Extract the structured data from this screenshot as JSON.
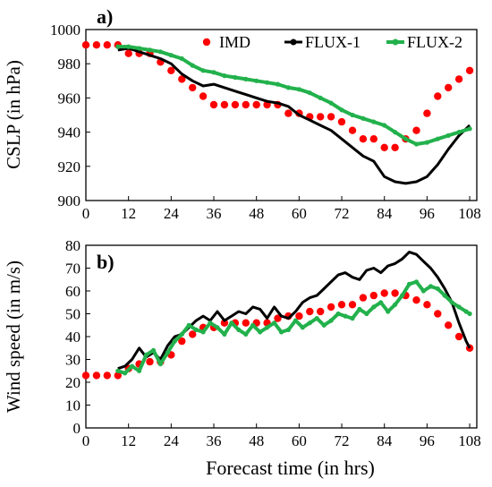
{
  "chart_data": [
    {
      "panel_label": "a)",
      "type": "line",
      "title": "",
      "xlabel": "",
      "ylabel": "CSLP (in hPa)",
      "xlim": [
        0,
        110
      ],
      "ylim": [
        900,
        1000
      ],
      "x_ticks": [
        0,
        12,
        24,
        36,
        48,
        60,
        72,
        84,
        96,
        108
      ],
      "y_ticks": [
        900,
        920,
        940,
        960,
        980,
        1000
      ],
      "grid": false,
      "legend": "top-right",
      "series": [
        {
          "name": "IMD",
          "style": "dots",
          "color": "#ff0000",
          "x": [
            0,
            3,
            6,
            9,
            12,
            15,
            18,
            21,
            24,
            27,
            30,
            33,
            36,
            39,
            42,
            45,
            48,
            51,
            54,
            57,
            60,
            63,
            66,
            69,
            72,
            75,
            78,
            81,
            84,
            87,
            90,
            93,
            96,
            99,
            102,
            105,
            108
          ],
          "y": [
            991,
            991,
            991,
            991,
            986,
            986,
            986,
            981,
            976,
            971,
            966,
            961,
            956,
            956,
            956,
            956,
            956,
            956,
            956,
            951,
            951,
            949,
            949,
            949,
            946,
            941,
            936,
            936,
            931,
            931,
            936,
            941,
            951,
            961,
            966,
            971,
            976
          ]
        },
        {
          "name": "FLUX-1",
          "style": "line",
          "color": "#000000",
          "x": [
            9,
            12,
            15,
            18,
            21,
            24,
            27,
            30,
            33,
            36,
            39,
            42,
            45,
            48,
            51,
            54,
            57,
            60,
            63,
            66,
            69,
            72,
            75,
            78,
            81,
            84,
            87,
            90,
            93,
            96,
            99,
            102,
            105,
            108
          ],
          "y": [
            988,
            989,
            987,
            985,
            983,
            980,
            974,
            970,
            967,
            968,
            966,
            964,
            962,
            960,
            958,
            957,
            955,
            950,
            947,
            944,
            941,
            936,
            931,
            926,
            923,
            914,
            911,
            910,
            911,
            914,
            921,
            930,
            938,
            944
          ]
        },
        {
          "name": "FLUX-2",
          "style": "line-dots",
          "color": "#22b14c",
          "x": [
            9,
            12,
            15,
            18,
            21,
            24,
            27,
            30,
            33,
            36,
            39,
            42,
            45,
            48,
            51,
            54,
            57,
            60,
            63,
            66,
            69,
            72,
            75,
            78,
            81,
            84,
            87,
            90,
            93,
            96,
            99,
            102,
            105,
            108
          ],
          "y": [
            990,
            990,
            989,
            988,
            987,
            985,
            983,
            979,
            976,
            975,
            973,
            972,
            971,
            970,
            969,
            968,
            966,
            965,
            963,
            960,
            957,
            953,
            950,
            948,
            946,
            944,
            940,
            936,
            933,
            934,
            936,
            938,
            940,
            942
          ]
        }
      ]
    },
    {
      "panel_label": "b)",
      "type": "line",
      "title": "",
      "xlabel": "Forecast time (in hrs)",
      "ylabel": "Wind speed (in m/s)",
      "xlim": [
        0,
        110
      ],
      "ylim": [
        0,
        80
      ],
      "x_ticks": [
        0,
        12,
        24,
        36,
        48,
        60,
        72,
        84,
        96,
        108
      ],
      "y_ticks": [
        0,
        10,
        20,
        30,
        40,
        50,
        60,
        70,
        80
      ],
      "grid": false,
      "series": [
        {
          "name": "IMD",
          "style": "dots",
          "color": "#ff0000",
          "x": [
            0,
            3,
            6,
            9,
            12,
            15,
            18,
            21,
            24,
            27,
            30,
            33,
            36,
            39,
            42,
            45,
            48,
            51,
            54,
            57,
            60,
            63,
            66,
            69,
            72,
            75,
            78,
            81,
            84,
            87,
            90,
            93,
            96,
            99,
            102,
            105,
            108
          ],
          "y": [
            23,
            23,
            23,
            23,
            26,
            28,
            29,
            29,
            32,
            38,
            41,
            44,
            44,
            46,
            46,
            46,
            46,
            46,
            48,
            49,
            49,
            51,
            51,
            53,
            54,
            54,
            57,
            58,
            59,
            59,
            58,
            56,
            54,
            50,
            45,
            40,
            35
          ]
        },
        {
          "name": "FLUX-1",
          "style": "line",
          "color": "#000000",
          "x": [
            9,
            11,
            13,
            15,
            17,
            19,
            21,
            23,
            25,
            27,
            29,
            31,
            33,
            35,
            37,
            39,
            41,
            43,
            45,
            47,
            49,
            51,
            53,
            55,
            57,
            59,
            61,
            63,
            65,
            67,
            69,
            71,
            73,
            75,
            77,
            79,
            81,
            83,
            85,
            87,
            89,
            91,
            93,
            95,
            97,
            99,
            101,
            103,
            105,
            107,
            108
          ],
          "y": [
            26,
            27,
            30,
            35,
            31,
            33,
            30,
            36,
            40,
            41,
            44,
            47,
            49,
            47,
            51,
            47,
            49,
            51,
            50,
            53,
            52,
            48,
            53,
            49,
            48,
            51,
            55,
            57,
            58,
            61,
            64,
            67,
            68,
            66,
            65,
            69,
            70,
            68,
            71,
            72,
            74,
            77,
            76,
            73,
            70,
            66,
            61,
            55,
            46,
            38,
            35
          ]
        },
        {
          "name": "FLUX-2",
          "style": "line-dots",
          "color": "#22b14c",
          "x": [
            9,
            11,
            13,
            15,
            17,
            19,
            21,
            23,
            25,
            27,
            29,
            31,
            33,
            35,
            37,
            39,
            41,
            43,
            45,
            47,
            49,
            51,
            53,
            55,
            57,
            59,
            61,
            63,
            65,
            67,
            69,
            71,
            73,
            75,
            77,
            79,
            81,
            83,
            85,
            87,
            89,
            91,
            93,
            95,
            97,
            99,
            101,
            103,
            105,
            107,
            108
          ],
          "y": [
            25,
            24,
            27,
            25,
            32,
            34,
            28,
            33,
            38,
            41,
            45,
            43,
            42,
            46,
            44,
            41,
            46,
            43,
            41,
            45,
            42,
            44,
            46,
            42,
            43,
            47,
            44,
            46,
            48,
            45,
            47,
            50,
            49,
            48,
            52,
            50,
            53,
            55,
            51,
            54,
            58,
            63,
            64,
            60,
            62,
            61,
            58,
            55,
            53,
            51,
            50
          ]
        }
      ]
    }
  ]
}
